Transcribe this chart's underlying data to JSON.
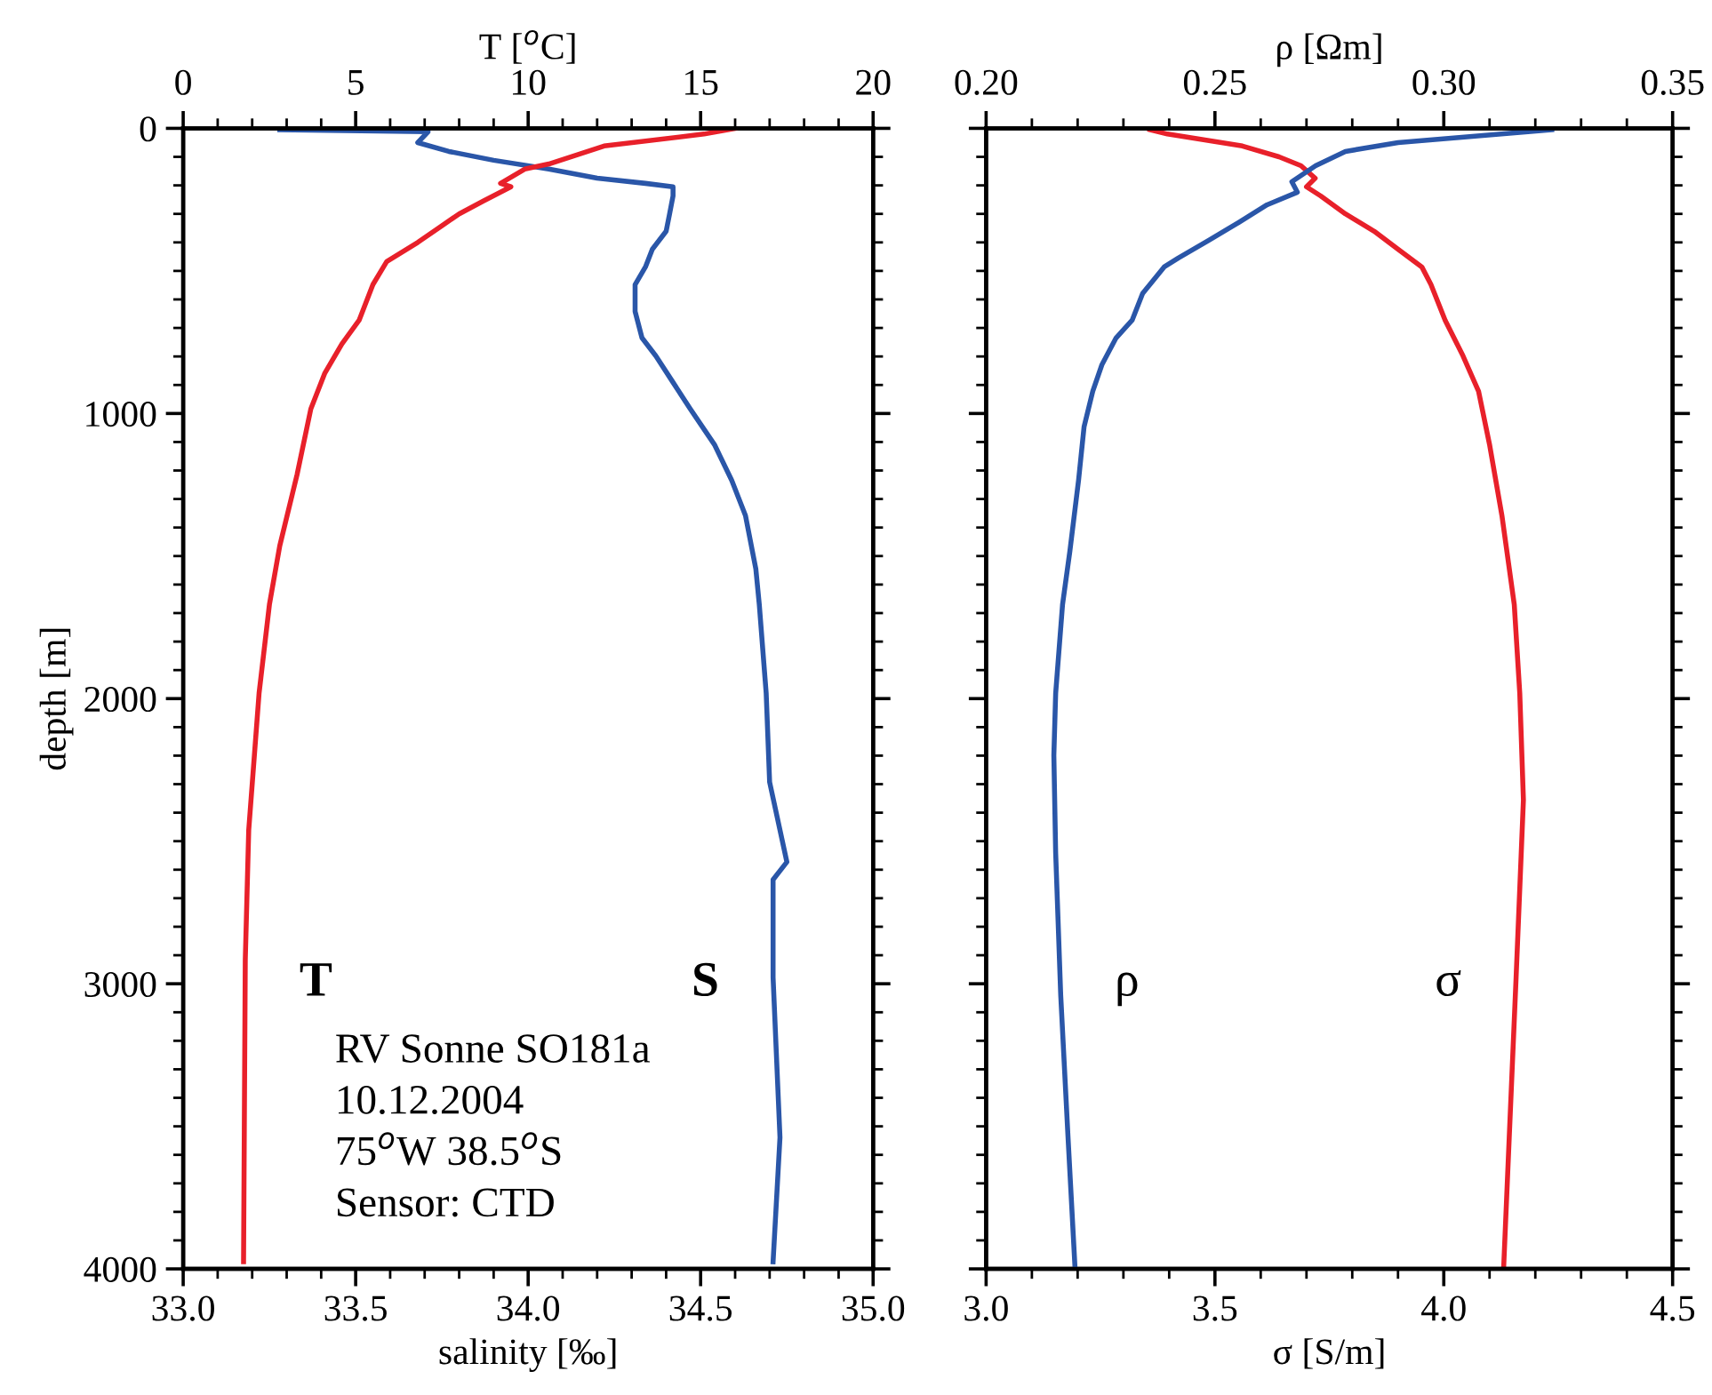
{
  "chart_data": [
    {
      "type": "line",
      "orientation": "horizontal",
      "xlabel": "salinity [‰]",
      "x2label": "T [$^{o}$C]",
      "ylabel": "depth [m]",
      "xlim": [
        33.0,
        35.0
      ],
      "xticks": [
        {
          "value": 33.0,
          "label": "33.0"
        },
        {
          "value": 33.5,
          "label": "33.5"
        },
        {
          "value": 34.0,
          "label": "34.0"
        },
        {
          "value": 34.5,
          "label": "34.5"
        },
        {
          "value": 35.0,
          "label": "35.0"
        }
      ],
      "x2lim": [
        0,
        20
      ],
      "x2ticks": [
        0,
        5,
        10,
        15,
        20
      ],
      "ylim": [
        4000,
        0
      ],
      "yticks": [
        0,
        1000,
        2000,
        3000,
        4000
      ],
      "grid": false,
      "legend": false,
      "annotations": [
        "RV Sonne SO181a",
        "10.12.2004",
        "75$^{o}$W 38.5$^{o}$S",
        "Sensor: CTD"
      ],
      "series": [
        {
          "name": "T",
          "color": "#e8202a",
          "axis": "x2",
          "x": [
            0,
            20,
            62,
            125,
            143,
            193,
            205,
            255,
            300,
            400,
            467,
            548,
            673,
            756,
            860,
            984,
            1215,
            1464,
            1670,
            1981,
            2461,
            2916,
            3975
          ],
          "values": [
            16.0,
            15.1,
            12.2,
            10.6,
            9.9,
            9.2,
            9.5,
            8.7,
            8.0,
            6.8,
            5.9,
            5.5,
            5.1,
            4.6,
            4.1,
            3.7,
            3.3,
            2.8,
            2.5,
            2.2,
            1.9,
            1.8,
            1.75
          ]
        },
        {
          "name": "S",
          "color": "#2a56a8",
          "x": [
            5,
            12,
            50,
            81,
            112,
            143,
            175,
            193,
            205,
            237,
            300,
            361,
            424,
            486,
            548,
            642,
            735,
            798,
            891,
            984,
            1109,
            1234,
            1358,
            1545,
            1670,
            1981,
            2293,
            2573,
            2635,
            2978,
            3539,
            3975
          ],
          "values": [
            33.28,
            33.71,
            33.68,
            33.77,
            33.9,
            34.06,
            34.2,
            34.34,
            34.42,
            34.42,
            34.41,
            34.4,
            34.36,
            34.34,
            34.31,
            34.31,
            34.33,
            34.37,
            34.42,
            34.47,
            34.54,
            34.59,
            34.63,
            34.66,
            34.67,
            34.69,
            34.7,
            34.75,
            34.71,
            34.71,
            34.73,
            34.71
          ]
        }
      ]
    },
    {
      "type": "line",
      "orientation": "horizontal",
      "xlabel": "σ [S/m]",
      "x2label": "ρ [Ωm]",
      "xlim": [
        3.0,
        4.5
      ],
      "xticks": [
        {
          "value": 3.0,
          "label": "3.0"
        },
        {
          "value": 3.5,
          "label": "3.5"
        },
        {
          "value": 4.0,
          "label": "4.0"
        },
        {
          "value": 4.5,
          "label": "4.5"
        }
      ],
      "x2lim": [
        0.2,
        0.35
      ],
      "x2ticks": [
        {
          "value": 0.2,
          "label": "0.20"
        },
        {
          "value": 0.25,
          "label": "0.25"
        },
        {
          "value": 0.3,
          "label": "0.30"
        },
        {
          "value": 0.35,
          "label": "0.35"
        }
      ],
      "ylim": [
        4000,
        0
      ],
      "yticks": [
        0,
        1000,
        2000,
        3000,
        4000
      ],
      "tick_labels": "x",
      "grid": false,
      "legend": false,
      "series": [
        {
          "name": "ρ",
          "color": "#2a56a8",
          "axis": "x2",
          "x": [
            5,
            50,
            81,
            131,
            187,
            224,
            268,
            330,
            393,
            455,
            486,
            579,
            673,
            735,
            829,
            922,
            1047,
            1234,
            1483,
            1670,
            1981,
            2199,
            2542,
            3040,
            3539,
            3988
          ],
          "values": [
            0.3236,
            0.29,
            0.2785,
            0.272,
            0.2668,
            0.268,
            0.2614,
            0.2552,
            0.2486,
            0.242,
            0.2389,
            0.2342,
            0.2319,
            0.2284,
            0.2253,
            0.2233,
            0.2214,
            0.2202,
            0.2183,
            0.2167,
            0.2152,
            0.2148,
            0.2152,
            0.2163,
            0.2179,
            0.2194
          ]
        },
        {
          "name": "σ",
          "color": "#e8202a",
          "x": [
            5,
            20,
            62,
            100,
            131,
            175,
            205,
            237,
            300,
            361,
            424,
            486,
            548,
            673,
            798,
            922,
            1109,
            1358,
            1670,
            1981,
            2355,
            2667,
            2978,
            3539,
            3988
          ],
          "values": [
            3.358,
            3.396,
            3.56,
            3.64,
            3.688,
            3.719,
            3.7,
            3.731,
            3.785,
            3.848,
            3.9,
            3.952,
            3.972,
            4.003,
            4.042,
            4.076,
            4.1,
            4.127,
            4.154,
            4.166,
            4.174,
            4.166,
            4.158,
            4.143,
            4.131
          ]
        }
      ]
    }
  ]
}
